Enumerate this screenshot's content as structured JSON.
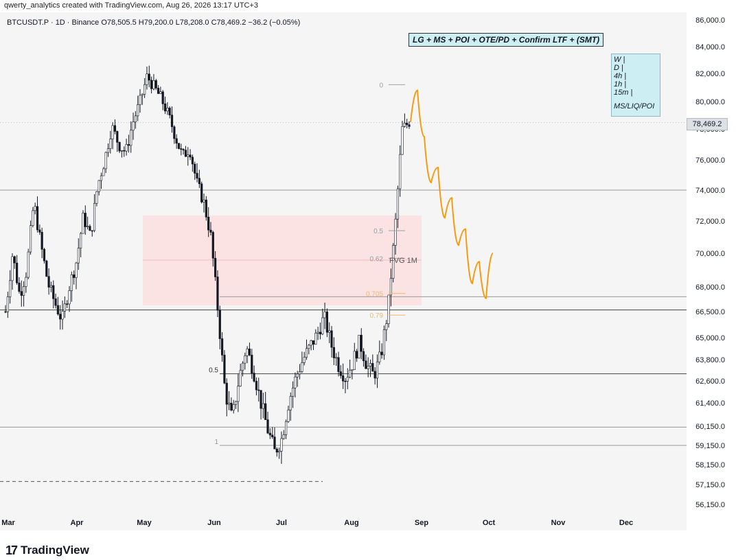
{
  "header": {
    "caption": "qwerty_analytics created with TradingView.com, Aug 26, 2026 13:17 UTC+3"
  },
  "legend": {
    "symbol_line": "BTCUSDT.P · 1D · Binance  O78,505.5  H79,200.0  L78,208.0  C78,469.2  −36.2 (−0.05%)"
  },
  "annotations": {
    "title_box": "LG + MS + POI + OTE/PD + Confirm LTF + (SMT)",
    "timeframes": [
      "W |",
      "D |",
      "4h |",
      "1h |",
      "15m |"
    ],
    "tf_footer": "MS/LIQ/POI",
    "fvg_label": "FVG 1M",
    "fib_right": [
      {
        "label": "0",
        "price": 81200,
        "color": "#9aa0a6"
      },
      {
        "label": "0.5",
        "price": 71400,
        "color": "#9aa0a6"
      },
      {
        "label": "0.62",
        "price": 69700,
        "color": "#9aa0a6"
      },
      {
        "label": "0.705",
        "price": 67600,
        "color": "#f4b860"
      },
      {
        "label": "0.79",
        "price": 66300,
        "color": "#f4b860"
      }
    ],
    "fib_left": [
      {
        "label": "0.5",
        "price": 63000
      },
      {
        "label": "1",
        "price": 59150
      }
    ]
  },
  "price_badge": "78,469.2",
  "footer": {
    "logo_mark": "17",
    "logo_text": "TradingView"
  },
  "colors": {
    "up": "#ffffff",
    "down": "#131722",
    "projection": "#f39c12",
    "zone_fill": "#fbe3e3",
    "zone_mid": "#f4b8b8",
    "bg": "#f5f5f5"
  },
  "chart_data": {
    "type": "candlestick",
    "symbol": "BTCUSDT.P",
    "timeframe": "1D",
    "exchange": "Binance",
    "ohlc": {
      "open": 78505.5,
      "high": 79200.0,
      "low": 78208.0,
      "close": 78469.2,
      "change": -36.2,
      "change_pct": -0.05
    },
    "x_ticks": [
      "Mar",
      "Apr",
      "May",
      "Jun",
      "Jul",
      "Aug",
      "Sep",
      "Oct",
      "Nov",
      "Dec"
    ],
    "y_ticks": [
      "86,000.0",
      "84,000.0",
      "82,000.0",
      "80,000.0",
      "78,000.0",
      "76,000.0",
      "74,000.0",
      "72,000.0",
      "70,000.0",
      "68,000.0",
      "66,500.0",
      "65,000.0",
      "63,800.0",
      "62,600.0",
      "61,400.0",
      "60,150.0",
      "59,150.0",
      "58,150.0",
      "57,150.0",
      "56,150.0"
    ],
    "y_tick_values": [
      86000,
      84000,
      82000,
      80000,
      78000,
      76000,
      74000,
      72000,
      70000,
      68000,
      66500,
      65000,
      63800,
      62600,
      61400,
      60150,
      59150,
      58150,
      57150,
      56150
    ],
    "close_path": [
      [
        "Mar",
        66500
      ],
      [
        "Mar",
        70000
      ],
      [
        "Mar",
        67500
      ],
      [
        "Mar",
        69000
      ],
      [
        "Mar",
        73200
      ],
      [
        "Mar",
        70500
      ],
      [
        "Mar",
        68200
      ],
      [
        "Mar",
        67000
      ],
      [
        "Mar",
        66000
      ],
      [
        "Apr",
        68000
      ],
      [
        "Apr",
        69500
      ],
      [
        "Apr",
        72300
      ],
      [
        "Apr",
        71000
      ],
      [
        "Apr",
        74300
      ],
      [
        "Apr",
        76000
      ],
      [
        "Apr",
        78200
      ],
      [
        "Apr",
        77000
      ],
      [
        "May",
        76500
      ],
      [
        "May",
        78500
      ],
      [
        "May",
        80000
      ],
      [
        "May",
        81800
      ],
      [
        "May",
        81000
      ],
      [
        "May",
        80200
      ],
      [
        "May",
        79000
      ],
      [
        "May",
        77500
      ],
      [
        "May",
        76200
      ],
      [
        "May",
        76800
      ],
      [
        "Jun",
        74500
      ],
      [
        "Jun",
        73200
      ],
      [
        "Jun",
        71000
      ],
      [
        "Jun",
        66500
      ],
      [
        "Jun",
        62000
      ],
      [
        "Jun",
        60500
      ],
      [
        "Jun",
        62800
      ],
      [
        "Jun",
        64500
      ],
      [
        "Jun",
        63200
      ],
      [
        "Jun",
        61500
      ],
      [
        "Jun",
        60000
      ],
      [
        "Jun",
        58800
      ],
      [
        "Jul",
        59500
      ],
      [
        "Jul",
        61500
      ],
      [
        "Jul",
        62800
      ],
      [
        "Jul",
        63800
      ],
      [
        "Jul",
        64500
      ],
      [
        "Jul",
        65200
      ],
      [
        "Jul",
        66200
      ],
      [
        "Jul",
        64600
      ],
      [
        "Aug",
        63500
      ],
      [
        "Aug",
        62800
      ],
      [
        "Aug",
        63600
      ],
      [
        "Aug",
        64800
      ],
      [
        "Aug",
        63500
      ],
      [
        "Aug",
        62900
      ],
      [
        "Aug",
        64000
      ],
      [
        "Aug",
        66600
      ],
      [
        "Aug",
        71500
      ],
      [
        "Aug",
        78000
      ],
      [
        "Aug",
        78500
      ]
    ],
    "projection": [
      [
        78500,
        80800
      ],
      [
        80800,
        77500
      ],
      [
        77500,
        74500
      ],
      [
        74500,
        75500
      ],
      [
        75500,
        72200
      ],
      [
        72200,
        73500
      ],
      [
        73500,
        70500
      ],
      [
        70500,
        71500
      ],
      [
        71500,
        68200
      ],
      [
        68200,
        69500
      ],
      [
        69500,
        67300
      ],
      [
        67300,
        70000
      ]
    ],
    "horizontal_levels": [
      74000,
      67400,
      66600,
      63000,
      60100,
      59150
    ],
    "dashed_level": 57300,
    "fvg_zone": {
      "label": "FVG 1M",
      "top": 72400,
      "bottom": 67200,
      "mid": 69700
    }
  }
}
